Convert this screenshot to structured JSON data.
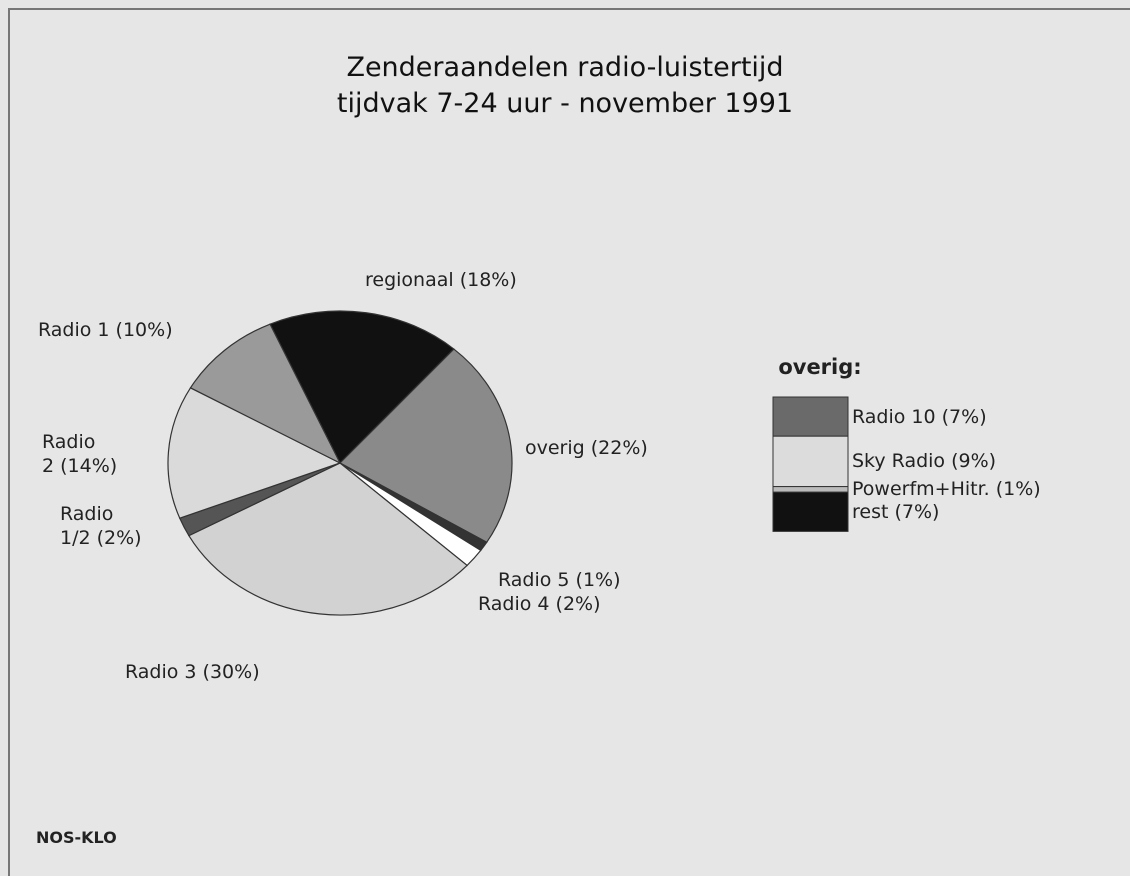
{
  "chart_data": [
    {
      "type": "pie",
      "title": [
        "Zenderaandelen radio-luistertijd",
        "tijdvak 7-24 uur - november 1991"
      ],
      "categories": [
        "regionaal (18%)",
        "overig (22%)",
        "Radio 5 (1%)",
        "Radio 4 (2%)",
        "Radio 3 (30%)",
        "Radio\n1/2 (2%)",
        "Radio\n2 (14%)",
        "Radio 1 (10%)"
      ],
      "values": [
        18,
        22,
        1,
        2,
        30,
        2,
        14,
        10
      ],
      "colors": [
        "#111111",
        "#8a8a8a",
        "#333333",
        "#ffffff",
        "#d2d2d2",
        "#555555",
        "#dadada",
        "#9a9a9a"
      ],
      "source": "NOS-KLO"
    },
    {
      "type": "stacked-legend",
      "title": "overig:",
      "categories": [
        "Radio 10 (7%)",
        "Sky Radio (9%)",
        "Powerfm+Hitr. (1%)",
        "rest (7%)"
      ],
      "values": [
        7,
        9,
        1,
        7
      ],
      "colors": [
        "#6a6a6a",
        "#dcdcdc",
        "#bbbbbb",
        "#111111"
      ]
    }
  ]
}
